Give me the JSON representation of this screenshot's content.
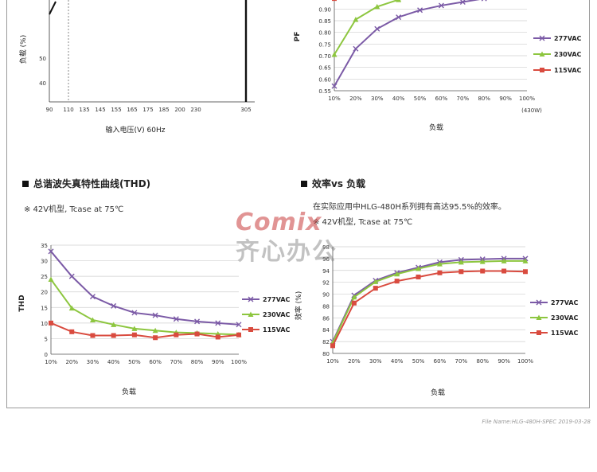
{
  "colors": {
    "s277": "#7b5aa6",
    "s230": "#8dc63f",
    "s115": "#d94b3f"
  },
  "top_left": {
    "ylabel": "负载 (%)",
    "xlabel": "输入电压(V) 60Hz",
    "y_ticks": [
      "50",
      "40"
    ],
    "x_ticks": [
      "90",
      "110",
      "135",
      "145",
      "155",
      "165",
      "175",
      "185",
      "200",
      "230",
      "305"
    ]
  },
  "top_right": {
    "ylabel": "PF",
    "xlabel": "负载",
    "x_note": "(430W)",
    "legend": [
      "277VAC",
      "230VAC",
      "115VAC"
    ]
  },
  "thd": {
    "title": "总谐波失真特性曲线(THD)",
    "note": "※ 42V机型, Tcase at 75℃",
    "ylabel": "THD",
    "xlabel": "负载",
    "legend": [
      "277VAC",
      "230VAC",
      "115VAC"
    ]
  },
  "eff": {
    "title": "效率vs 负载",
    "desc": "在实际应用中HLG-480H系列拥有高达95.5%的效率。",
    "note": "※ 42V机型, Tcase at 75℃",
    "ylabel": "效率 (%)",
    "xlabel": "负载",
    "legend": [
      "277VAC",
      "230VAC",
      "115VAC"
    ]
  },
  "watermark": {
    "top": "Comix",
    "bottom": "齐心办公"
  },
  "footer": "File Name:HLG-480H-SPEC   2019-03-28",
  "chart_data": [
    {
      "type": "line",
      "title": "",
      "xlabel": "负载",
      "ylabel": "PF",
      "categories": [
        "10%",
        "20%",
        "30%",
        "40%",
        "50%",
        "60%",
        "70%",
        "80%",
        "90%",
        "100%"
      ],
      "ylim": [
        0.55,
        1.0
      ],
      "y_ticks": [
        0.55,
        0.6,
        0.65,
        0.7,
        0.75,
        0.8,
        0.85,
        0.9,
        0.95
      ],
      "grid": true,
      "legend": "right",
      "series": [
        {
          "name": "277VAC",
          "values": [
            0.57,
            0.73,
            0.815,
            0.865,
            0.895,
            0.915,
            0.93,
            0.945,
            0.955,
            0.96
          ]
        },
        {
          "name": "230VAC",
          "values": [
            0.705,
            0.855,
            0.91,
            0.94,
            0.955,
            0.965,
            0.97,
            0.975,
            0.98,
            0.98
          ]
        },
        {
          "name": "115VAC",
          "values": [
            0.945,
            0.975,
            0.985,
            0.99,
            0.99,
            0.99,
            0.99,
            0.99,
            0.99,
            0.99
          ]
        }
      ]
    },
    {
      "type": "line",
      "title": "总谐波失真特性曲线(THD)",
      "xlabel": "负载",
      "ylabel": "THD",
      "categories": [
        "10%",
        "20%",
        "30%",
        "40%",
        "50%",
        "60%",
        "70%",
        "80%",
        "90%",
        "100%"
      ],
      "ylim": [
        0,
        35
      ],
      "y_ticks": [
        0,
        5,
        10,
        15,
        20,
        25,
        30,
        35
      ],
      "grid": true,
      "legend": "right",
      "series": [
        {
          "name": "277VAC",
          "values": [
            33,
            25,
            18.5,
            15.5,
            13.3,
            12.5,
            11.3,
            10.5,
            10,
            9.5
          ]
        },
        {
          "name": "230VAC",
          "values": [
            24,
            14.8,
            11,
            9.5,
            8.2,
            7.6,
            7,
            6.8,
            6.5,
            6.3
          ]
        },
        {
          "name": "115VAC",
          "values": [
            10,
            7.2,
            6,
            6,
            6.2,
            5.3,
            6.2,
            6.5,
            5.5,
            6.2
          ]
        }
      ]
    },
    {
      "type": "line",
      "title": "效率vs 负载",
      "xlabel": "负载",
      "ylabel": "效率 (%)",
      "categories": [
        "10%",
        "20%",
        "30%",
        "40%",
        "50%",
        "60%",
        "70%",
        "80%",
        "90%",
        "100%"
      ],
      "ylim": [
        80,
        98
      ],
      "y_ticks": [
        80,
        82,
        84,
        86,
        88,
        90,
        92,
        94,
        96,
        98
      ],
      "grid": true,
      "legend": "right",
      "series": [
        {
          "name": "277VAC",
          "values": [
            82,
            89.8,
            92.3,
            93.6,
            94.5,
            95.4,
            95.8,
            95.9,
            96,
            96
          ]
        },
        {
          "name": "230VAC",
          "values": [
            81.8,
            89.5,
            92.1,
            93.4,
            94.3,
            95.1,
            95.4,
            95.5,
            95.6,
            95.6
          ]
        },
        {
          "name": "115VAC",
          "values": [
            81.3,
            88.5,
            91,
            92.2,
            92.9,
            93.6,
            93.8,
            93.9,
            93.9,
            93.8
          ]
        }
      ]
    }
  ]
}
